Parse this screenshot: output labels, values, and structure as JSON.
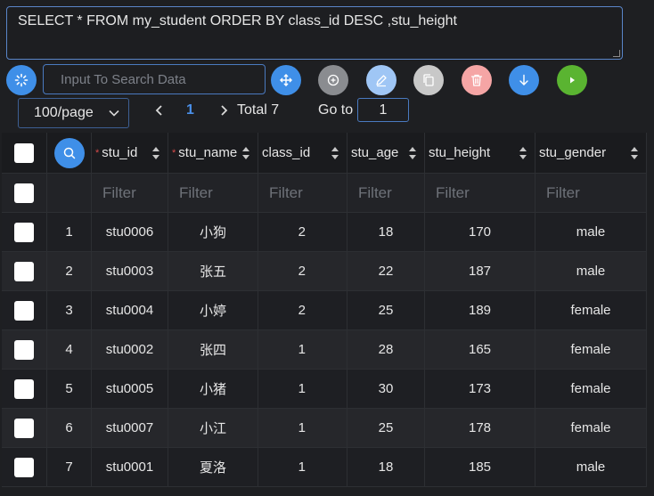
{
  "query": "SELECT * FROM my_student ORDER BY class_id DESC ,stu_height",
  "toolbar": {
    "search_placeholder": "Input To Search Data",
    "buttons": [
      {
        "icon": "loading-icon",
        "color": "#3f8fe8"
      },
      {
        "icon": "move-icon",
        "color": "#3f8fe8"
      },
      {
        "icon": "add-icon",
        "color": "#8a8c90"
      },
      {
        "icon": "edit-icon",
        "color": "#9fc6f5"
      },
      {
        "icon": "copy-icon",
        "color": "#c8c8c8"
      },
      {
        "icon": "delete-icon",
        "color": "#f5a5a5"
      },
      {
        "icon": "download-icon",
        "color": "#3f8fe8"
      },
      {
        "icon": "run-icon",
        "color": "#5ab431"
      }
    ]
  },
  "pager": {
    "page_size": "100/page",
    "current_page": "1",
    "total": "Total 7",
    "goto_label": "Go to",
    "goto_value": "1"
  },
  "table": {
    "columns": [
      {
        "key": "stu_id",
        "label": "stu_id",
        "required": true
      },
      {
        "key": "stu_name",
        "label": "stu_name",
        "required": true
      },
      {
        "key": "class_id",
        "label": "class_id",
        "required": false
      },
      {
        "key": "stu_age",
        "label": "stu_age",
        "required": false
      },
      {
        "key": "stu_height",
        "label": "stu_height",
        "required": false
      },
      {
        "key": "stu_gender",
        "label": "stu_gender",
        "required": false
      }
    ],
    "filter_placeholder": "Filter",
    "rows": [
      {
        "idx": "1",
        "stu_id": "stu0006",
        "stu_name": "小狗",
        "class_id": "2",
        "stu_age": "18",
        "stu_height": "170",
        "stu_gender": "male"
      },
      {
        "idx": "2",
        "stu_id": "stu0003",
        "stu_name": "张五",
        "class_id": "2",
        "stu_age": "22",
        "stu_height": "187",
        "stu_gender": "male"
      },
      {
        "idx": "3",
        "stu_id": "stu0004",
        "stu_name": "小婷",
        "class_id": "2",
        "stu_age": "25",
        "stu_height": "189",
        "stu_gender": "female"
      },
      {
        "idx": "4",
        "stu_id": "stu0002",
        "stu_name": "张四",
        "class_id": "1",
        "stu_age": "28",
        "stu_height": "165",
        "stu_gender": "female"
      },
      {
        "idx": "5",
        "stu_id": "stu0005",
        "stu_name": "小猪",
        "class_id": "1",
        "stu_age": "30",
        "stu_height": "173",
        "stu_gender": "female"
      },
      {
        "idx": "6",
        "stu_id": "stu0007",
        "stu_name": "小江",
        "class_id": "1",
        "stu_age": "25",
        "stu_height": "178",
        "stu_gender": "female"
      },
      {
        "idx": "7",
        "stu_id": "stu0001",
        "stu_name": "夏洛",
        "class_id": "1",
        "stu_age": "18",
        "stu_height": "185",
        "stu_gender": "male"
      }
    ]
  }
}
